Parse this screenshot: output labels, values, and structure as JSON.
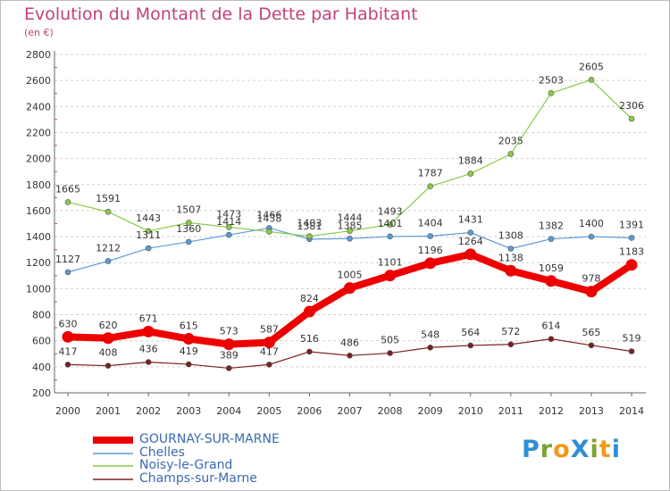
{
  "title": "Evolution du Montant de la Dette par Habitant",
  "subtitle": "(en €)",
  "brand": {
    "text": "ProXiti",
    "letter_colors": [
      "#2f8fd6",
      "#7aa331",
      "#f19a1a",
      "#2f8fd6",
      "#7aa331",
      "#f19a1a",
      "#2f8fd6"
    ]
  },
  "chart_data": {
    "type": "line",
    "title": "Evolution du Montant de la Dette par Habitant",
    "subtitle": "(en €)",
    "x": [
      "2000",
      "2001",
      "2002",
      "2003",
      "2004",
      "2005",
      "2006",
      "2007",
      "2008",
      "2009",
      "2010",
      "2011",
      "2012",
      "2013",
      "2014"
    ],
    "ylim": [
      200,
      2800
    ],
    "yticks": [
      "200",
      "400",
      "600",
      "800",
      "1000",
      "1200",
      "1400",
      "1600",
      "1800",
      "2000",
      "2200",
      "2400",
      "2600",
      "2800"
    ],
    "grid": "horizontal dashed",
    "legend_position": "bottom-left",
    "series": [
      {
        "name": "GOURNAY-SUR-MARNE",
        "color": "#ee0000",
        "values": [
          630,
          620,
          671,
          615,
          573,
          587,
          824,
          1005,
          1101,
          1196,
          1264,
          1138,
          1059,
          978,
          1183
        ]
      },
      {
        "name": "Chelles",
        "color": "#5b9bd5",
        "values": [
          1127,
          1212,
          1311,
          1360,
          1414,
          1466,
          1381,
          1385,
          1401,
          1404,
          1431,
          1308,
          1382,
          1400,
          1391
        ]
      },
      {
        "name": "Noisy-le-Grand",
        "color": "#88cc44",
        "values": [
          1665,
          1591,
          1443,
          1507,
          1473,
          1438,
          1403,
          1444,
          1493,
          1787,
          1884,
          2035,
          2503,
          2605,
          2306
        ]
      },
      {
        "name": "Champs-sur-Marne",
        "color": "#7a2020",
        "values": [
          417,
          408,
          436,
          419,
          389,
          417,
          516,
          486,
          505,
          548,
          564,
          572,
          614,
          565,
          519
        ]
      }
    ]
  }
}
